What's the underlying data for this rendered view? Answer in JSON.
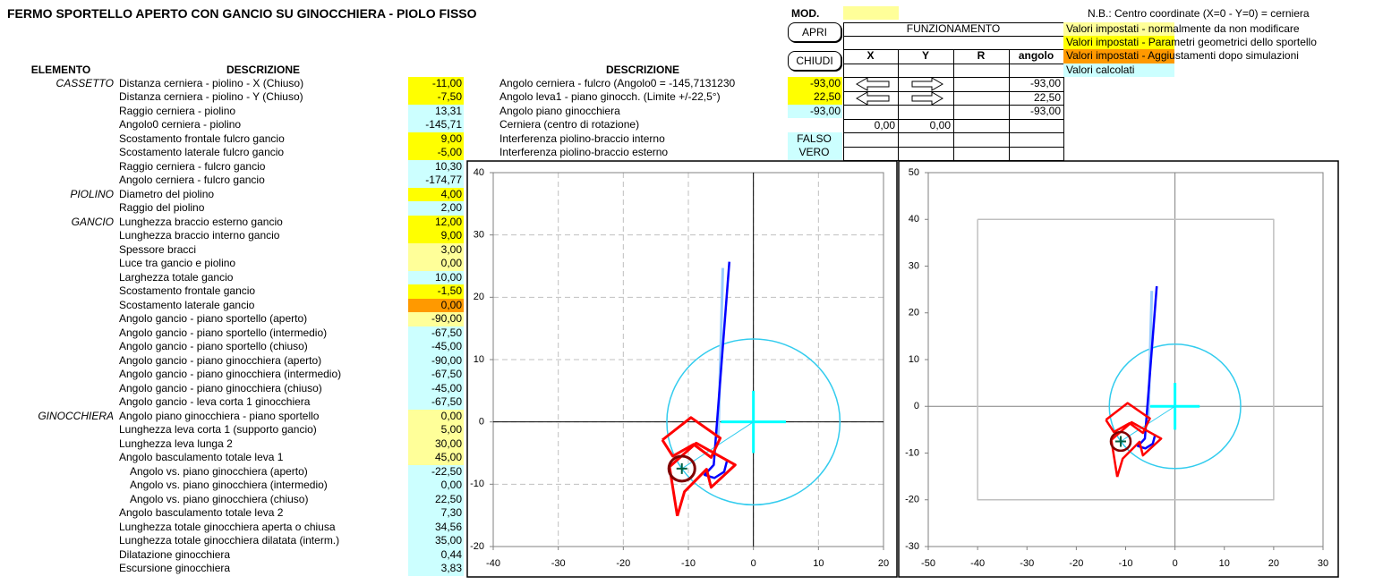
{
  "title": "FERMO SPORTELLO APERTO CON GANCIO SU GINOCCHIERA - PIOLO FISSO",
  "table": {
    "headers": [
      "ELEMENTO",
      "DESCRIZIONE"
    ],
    "rows": [
      {
        "group": "CASSETTO",
        "label": "Distanza cerniera - piolino - X (Chiuso)",
        "value": "-11,00",
        "fill": "#ffff00"
      },
      {
        "label": "Distanza cerniera - piolino - Y (Chiuso)",
        "value": "-7,50",
        "fill": "#ffff00"
      },
      {
        "label": "Raggio cerniera - piolino",
        "value": "13,31",
        "fill": "#ccffff"
      },
      {
        "label": "Angolo0 cerniera - piolino",
        "value": "-145,71",
        "fill": "#ccffff"
      },
      {
        "label": "Scostamento frontale fulcro gancio",
        "value": "9,00",
        "fill": "#ffff00"
      },
      {
        "label": "Scostamento laterale fulcro gancio",
        "value": "-5,00",
        "fill": "#ffff00"
      },
      {
        "label": "Raggio cerniera - fulcro gancio",
        "value": "10,30",
        "fill": "#ccffff"
      },
      {
        "label": "Angolo cerniera - fulcro gancio",
        "value": "-174,77",
        "fill": "#ccffff"
      },
      {
        "group": "PIOLINO",
        "label": "Diametro del piolino",
        "value": "4,00",
        "fill": "#ffff00"
      },
      {
        "label": "Raggio del piolino",
        "value": "2,00",
        "fill": "#ccffff"
      },
      {
        "group": "GANCIO",
        "label": "Lunghezza braccio esterno gancio",
        "value": "12,00",
        "fill": "#ffff00"
      },
      {
        "label": "Lunghezza braccio interno gancio",
        "value": "9,00",
        "fill": "#ffff00"
      },
      {
        "label": "Spessore bracci",
        "value": "3,00",
        "fill": "#ffff99"
      },
      {
        "label": "Luce tra gancio e piolino",
        "value": "0,00",
        "fill": "#ffff99"
      },
      {
        "label": "Larghezza totale gancio",
        "value": "10,00",
        "fill": "#ccffff"
      },
      {
        "label": "Scostamento frontale gancio",
        "value": "-1,50",
        "fill": "#ffff00"
      },
      {
        "label": "Scostamento laterale gancio",
        "value": "0,00",
        "fill": "#ff9900"
      },
      {
        "label": "Angolo gancio - piano sportello (aperto)",
        "value": "-90,00",
        "fill": "#ffff99"
      },
      {
        "label": "Angolo gancio - piano sportello (intermedio)",
        "value": "-67,50",
        "fill": "#ccffff"
      },
      {
        "label": "Angolo gancio - piano sportello (chiuso)",
        "value": "-45,00",
        "fill": "#ccffff"
      },
      {
        "label": "Angolo gancio - piano ginocchiera (aperto)",
        "value": "-90,00",
        "fill": "#ccffff"
      },
      {
        "label": "Angolo gancio - piano ginocchiera (intermedio)",
        "value": "-67,50",
        "fill": "#ccffff"
      },
      {
        "label": "Angolo gancio - piano ginocchiera (chiuso)",
        "value": "-45,00",
        "fill": "#ccffff"
      },
      {
        "label": "Angolo gancio - leva corta 1 ginocchiera",
        "value": "-67,50",
        "fill": "#ccffff"
      },
      {
        "group": "GINOCCHIERA",
        "label": "Angolo piano ginocchiera - piano sportello",
        "value": "0,00",
        "fill": "#ffff99"
      },
      {
        "label": "Lunghezza leva corta 1 (supporto gancio)",
        "value": "5,00",
        "fill": "#ffff99"
      },
      {
        "label": "Lunghezza leva lunga 2",
        "value": "30,00",
        "fill": "#ffff99"
      },
      {
        "label": "Angolo basculamento totale leva 1",
        "value": "45,00",
        "fill": "#ffff99"
      },
      {
        "label": "Angolo vs. piano ginocchiera (aperto)",
        "value": "-22,50",
        "fill": "#ccffff",
        "indent": true
      },
      {
        "label": "Angolo vs. piano ginocchiera (intermedio)",
        "value": "0,00",
        "fill": "#ccffff",
        "indent": true
      },
      {
        "label": "Angolo vs. piano ginocchiera (chiuso)",
        "value": "22,50",
        "fill": "#ccffff",
        "indent": true
      },
      {
        "label": "Angolo basculamento totale leva 2",
        "value": "7,30",
        "fill": "#ccffff"
      },
      {
        "label": "Lunghezza totale ginocchiera aperta o chiusa",
        "value": "34,56",
        "fill": "#ccffff"
      },
      {
        "label": "Lunghezza totale ginocchiera dilatata (interm.)",
        "value": "35,00",
        "fill": "#ccffff"
      },
      {
        "label": "Dilatazione ginocchiera",
        "value": "0,44",
        "fill": "#ccffff"
      },
      {
        "label": "Escursione ginocchiera",
        "value": "3,83",
        "fill": "#ccffff"
      }
    ]
  },
  "middle": {
    "header": "DESCRIZIONE",
    "rows": [
      {
        "label": "Angolo cerniera - fulcro   (Angolo0 = -145,7131230",
        "value": "-93,00",
        "fill": "#ffff00"
      },
      {
        "label": "Angolo leva1 - piano ginocch. (Limite +/-22,5°)",
        "value": "22,50",
        "fill": "#ffff00"
      },
      {
        "label": "Angolo piano ginocchiera",
        "value": "-93,00",
        "fill": "#ccffff"
      },
      {
        "label": "Cerniera (centro di rotazione)"
      },
      {
        "label": "Interferenza piolino-braccio interno",
        "value": "FALSO",
        "fill": "#ccffff",
        "align": "center"
      },
      {
        "label": "Interferenza piolino-braccio esterno",
        "value": "VERO",
        "fill": "#ccffff",
        "align": "center"
      }
    ]
  },
  "mod": {
    "label": "MOD.",
    "fill": "#ffff99"
  },
  "buttons": [
    "APRI",
    "CHIUDI"
  ],
  "grid": {
    "title": "FUNZIONAMENTO",
    "columns": [
      "X",
      "Y",
      "R",
      "angolo"
    ],
    "rows": [
      [
        null,
        null,
        null,
        "-93,00"
      ],
      [
        null,
        null,
        null,
        "22,50"
      ],
      [
        null,
        null,
        null,
        "-93,00"
      ],
      [
        "0,00",
        "0,00",
        null,
        null
      ]
    ]
  },
  "notes": [
    {
      "text": "N.B.: Centro coordinate (X=0 - Y=0) = cerniera"
    },
    {
      "text": "Valori impostati - normalmente da non modificare",
      "fill": "#ffff99"
    },
    {
      "text": "Valori impostati - Parametri geometrici dello sportello",
      "fill": "#ffff00"
    },
    {
      "text": "Valori impostati - Aggiustamenti dopo simulazioni",
      "fill": "#ff9900"
    },
    {
      "text": "Valori calcolati",
      "fill": "#ccffff"
    }
  ],
  "chart_data": [
    {
      "type": "line",
      "xlim": [
        -40,
        20
      ],
      "ylim": [
        -20,
        40
      ],
      "xticks": [
        -40,
        -30,
        -20,
        -10,
        0,
        10,
        20
      ],
      "yticks": [
        -20,
        -10,
        0,
        10,
        20,
        30,
        40
      ],
      "grid": true,
      "zero_line_color": "#000000",
      "series": [
        {
          "shape": "circle",
          "color": "#33ccee",
          "width": 1.5,
          "cx": [
            0
          ],
          "cy": [
            0
          ],
          "r": [
            13.31
          ]
        },
        {
          "color": "#00ffff",
          "width": 3,
          "x": [
            -5,
            5
          ],
          "y": [
            0,
            0
          ]
        },
        {
          "color": "#00ffff",
          "width": 3,
          "x": [
            0,
            0
          ],
          "y": [
            5,
            -5
          ]
        },
        {
          "color": "#33ccee",
          "width": 1,
          "x": [
            0,
            -11
          ],
          "y": [
            0,
            -7.5
          ]
        },
        {
          "color": "#99ccff",
          "width": 3,
          "x": [
            -4.7,
            -5.4
          ],
          "y": [
            24.7,
            -2.6
          ]
        },
        {
          "color": "#0000ff",
          "width": 2.5,
          "x": [
            -3.7,
            -6.1,
            -7.5,
            -6.0,
            -4.5,
            -4.0
          ],
          "y": [
            25.7,
            -6.9,
            -8.5,
            -9.0,
            -8.0,
            -6.0
          ]
        },
        {
          "color": "#ff0000",
          "width": 3,
          "x": [
            -14.0,
            -9.6,
            -5.1,
            -6.5,
            -9.2,
            -12.4,
            -14.0
          ],
          "y": [
            -2.9,
            0.7,
            -2.6,
            -5.7,
            -3.6,
            -5.5,
            -2.9
          ]
        },
        {
          "color": "#ff0000",
          "width": 3,
          "x": [
            -11.7,
            -12.9,
            -8.8,
            -2.8,
            -6.5,
            -7.2,
            -10.6,
            -11.7
          ],
          "y": [
            -15.1,
            -7.2,
            -3.4,
            -6.9,
            -10.5,
            -7.6,
            -11.2,
            -15.1
          ]
        },
        {
          "shape": "circle",
          "color": "#800000",
          "width": 3,
          "cx": [
            -11
          ],
          "cy": [
            -7.5
          ],
          "r": [
            2
          ]
        },
        {
          "marker": "plus",
          "color": "#006040",
          "width": 2,
          "x": [
            -11
          ],
          "y": [
            -7.5
          ]
        }
      ]
    },
    {
      "type": "line",
      "xlim": [
        -50,
        30
      ],
      "ylim": [
        -30,
        50
      ],
      "xticks": [
        -50,
        -40,
        -30,
        -20,
        -10,
        0,
        10,
        20,
        30
      ],
      "yticks": [
        -30,
        -20,
        -10,
        0,
        10,
        20,
        30,
        40,
        50
      ],
      "grid": false,
      "zero_line_color": "#808080",
      "series": [
        {
          "color": "#c0c0c0",
          "width": 1.5,
          "x": [
            -40,
            20,
            20,
            -40,
            -40
          ],
          "y": [
            40,
            40,
            -20,
            -20,
            40
          ]
        },
        {
          "shape": "circle",
          "color": "#33ccee",
          "width": 1.5,
          "cx": [
            0
          ],
          "cy": [
            0
          ],
          "r": [
            13.31
          ]
        },
        {
          "color": "#00ffff",
          "width": 3,
          "x": [
            -5,
            5
          ],
          "y": [
            0,
            0
          ]
        },
        {
          "color": "#00ffff",
          "width": 3,
          "x": [
            0,
            0
          ],
          "y": [
            5,
            -5
          ]
        },
        {
          "color": "#33ccee",
          "width": 1,
          "x": [
            0,
            -11
          ],
          "y": [
            0,
            -7.5
          ]
        },
        {
          "color": "#99ccff",
          "width": 3,
          "x": [
            -4.7,
            -5.4
          ],
          "y": [
            24.7,
            -2.6
          ]
        },
        {
          "color": "#0000ff",
          "width": 2.5,
          "x": [
            -3.7,
            -6.1,
            -7.5,
            -6.0,
            -4.5,
            -4.0
          ],
          "y": [
            25.7,
            -6.9,
            -8.5,
            -9.0,
            -8.0,
            -6.0
          ]
        },
        {
          "color": "#ff0000",
          "width": 2.5,
          "x": [
            -14.0,
            -9.6,
            -5.1,
            -6.5,
            -9.2,
            -12.4,
            -14.0
          ],
          "y": [
            -2.9,
            0.7,
            -2.6,
            -5.7,
            -3.6,
            -5.5,
            -2.9
          ]
        },
        {
          "color": "#ff0000",
          "width": 2.5,
          "x": [
            -11.7,
            -12.9,
            -8.8,
            -2.8,
            -6.5,
            -7.2,
            -10.6,
            -11.7
          ],
          "y": [
            -15.1,
            -7.2,
            -3.4,
            -6.9,
            -10.5,
            -7.6,
            -11.2,
            -15.1
          ]
        },
        {
          "shape": "circle",
          "color": "#800000",
          "width": 2.5,
          "cx": [
            -11
          ],
          "cy": [
            -7.5
          ],
          "r": [
            2
          ]
        },
        {
          "marker": "plus",
          "color": "#006040",
          "width": 2,
          "x": [
            -11
          ],
          "y": [
            -7.5
          ]
        }
      ]
    }
  ]
}
